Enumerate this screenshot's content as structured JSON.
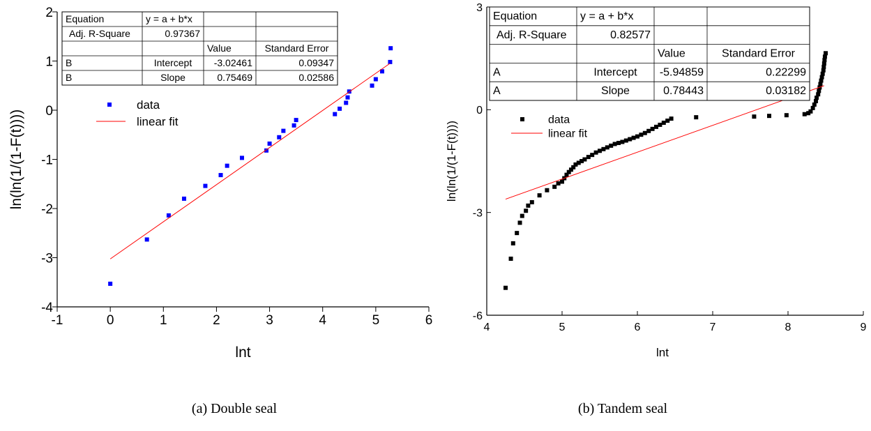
{
  "chart_data": [
    {
      "type": "scatter",
      "caption": "(a) Double seal",
      "xlabel": "lnt",
      "ylabel": "ln(ln(1/(1-F(t))))",
      "xlim": [
        -1,
        6
      ],
      "ylim": [
        -4,
        2
      ],
      "xticks": [
        "-1",
        "0",
        "1",
        "2",
        "3",
        "4",
        "5",
        "6"
      ],
      "yticks": [
        "-4",
        "-3",
        "-2",
        "-1",
        "0",
        "1",
        "2"
      ],
      "series": [
        {
          "name": "data",
          "kind": "points",
          "color": "#0000ff",
          "x": [
            0.0,
            0.69,
            1.1,
            1.39,
            1.79,
            2.08,
            2.2,
            2.48,
            2.94,
            3.0,
            3.18,
            3.26,
            3.46,
            3.5,
            4.23,
            4.32,
            4.44,
            4.47,
            4.5,
            4.93,
            5.0,
            5.12,
            5.27,
            5.28
          ],
          "y": [
            -3.53,
            -2.63,
            -2.14,
            -1.8,
            -1.54,
            -1.32,
            -1.13,
            -0.97,
            -0.82,
            -0.68,
            -0.55,
            -0.42,
            -0.31,
            -0.2,
            -0.08,
            0.03,
            0.15,
            0.26,
            0.38,
            0.5,
            0.63,
            0.79,
            0.98,
            1.26
          ]
        },
        {
          "name": "linear fit",
          "kind": "line",
          "color": "#ff0000",
          "x": [
            0.0,
            5.27
          ],
          "y": [
            -3.02461,
            0.9538
          ]
        }
      ],
      "fit_table": {
        "equation_label": "Equation",
        "equation": "y = a + b*x",
        "r2_label": "Adj. R-Square",
        "r2": "0.97367",
        "value_header": "Value",
        "se_header": "Standard Error",
        "rows": [
          {
            "param": "B",
            "name": "Intercept",
            "value": "-3.02461",
            "se": "0.09347"
          },
          {
            "param": "B",
            "name": "Slope",
            "value": "0.75469",
            "se": "0.02586"
          }
        ]
      }
    },
    {
      "type": "scatter",
      "caption": "(b) Tandem seal",
      "xlabel": "lnt",
      "ylabel": "ln(ln(1/(1-F(t))))",
      "xlim": [
        4,
        9
      ],
      "ylim": [
        -6,
        3
      ],
      "xticks": [
        "4",
        "5",
        "6",
        "7",
        "8",
        "9"
      ],
      "yticks": [
        "-6",
        "-3",
        "0",
        "3"
      ],
      "series": [
        {
          "name": "data",
          "kind": "points",
          "color": "#000000",
          "x": [
            4.25,
            4.32,
            4.35,
            4.4,
            4.44,
            4.47,
            4.52,
            4.55,
            4.6,
            4.7,
            4.8,
            4.9,
            4.95,
            5.0,
            5.03,
            5.06,
            5.09,
            5.12,
            5.15,
            5.18,
            5.22,
            5.26,
            5.3,
            5.35,
            5.4,
            5.45,
            5.5,
            5.55,
            5.6,
            5.65,
            5.7,
            5.75,
            5.8,
            5.85,
            5.9,
            5.95,
            6.0,
            6.05,
            6.1,
            6.15,
            6.2,
            6.25,
            6.3,
            6.35,
            6.4,
            6.45,
            6.78,
            7.55,
            7.75,
            7.98,
            8.22,
            8.27,
            8.3,
            8.33,
            8.35,
            8.37,
            8.38,
            8.4,
            8.41,
            8.42,
            8.43,
            8.44,
            8.45,
            8.46,
            8.47,
            8.475,
            8.48,
            8.485,
            8.49,
            8.5
          ],
          "y": [
            -5.2,
            -4.35,
            -3.9,
            -3.6,
            -3.3,
            -3.1,
            -2.95,
            -2.8,
            -2.7,
            -2.5,
            -2.35,
            -2.25,
            -2.15,
            -2.1,
            -2.0,
            -1.9,
            -1.82,
            -1.75,
            -1.68,
            -1.6,
            -1.55,
            -1.5,
            -1.45,
            -1.38,
            -1.32,
            -1.25,
            -1.2,
            -1.15,
            -1.1,
            -1.05,
            -1.0,
            -0.97,
            -0.94,
            -0.9,
            -0.86,
            -0.82,
            -0.78,
            -0.73,
            -0.68,
            -0.62,
            -0.56,
            -0.5,
            -0.44,
            -0.38,
            -0.32,
            -0.26,
            -0.22,
            -0.2,
            -0.18,
            -0.16,
            -0.13,
            -0.1,
            -0.05,
            0.05,
            0.15,
            0.25,
            0.35,
            0.45,
            0.55,
            0.65,
            0.75,
            0.85,
            0.95,
            1.05,
            1.15,
            1.25,
            1.35,
            1.45,
            1.55,
            1.65
          ]
        },
        {
          "name": "linear fit",
          "kind": "line",
          "color": "#ff0000",
          "x": [
            4.25,
            8.48
          ],
          "y": [
            -2.611,
            0.7034
          ]
        }
      ],
      "fit_table": {
        "equation_label": "Equation",
        "equation": "y = a + b*x",
        "r2_label": "Adj. R-Square",
        "r2": "0.82577",
        "value_header": "Value",
        "se_header": "Standard Error",
        "rows": [
          {
            "param": "A",
            "name": "Intercept",
            "value": "-5.94859",
            "se": "0.22299"
          },
          {
            "param": "A",
            "name": "Slope",
            "value": "0.78443",
            "se": "0.03182"
          }
        ]
      }
    }
  ]
}
